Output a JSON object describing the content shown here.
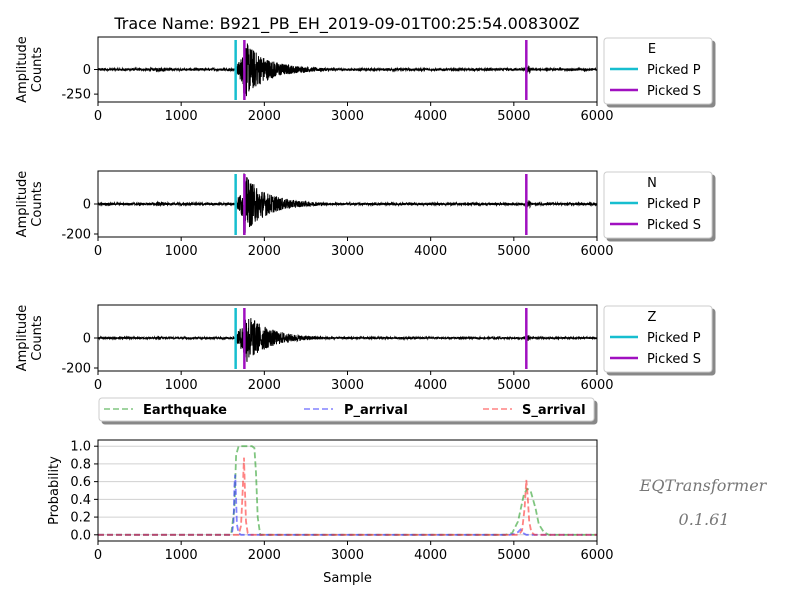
{
  "title": "Trace Name: B921_PB_EH_2019-09-01T00:25:54.008300Z",
  "brand": {
    "name": "EQTransformer",
    "version": "0.1.61"
  },
  "colors": {
    "picked_p": "#17becf",
    "picked_s": "#a010c0",
    "waveform": "#000000",
    "earthquake": "#2ca02c",
    "p_arrival": "#3030ff",
    "s_arrival": "#ff3030"
  },
  "chart_data": [
    {
      "type": "line",
      "name": "E",
      "xlabel": "",
      "ylabel": "Amplitude\nCounts",
      "xlim": [
        0,
        6000
      ],
      "ylim": [
        -330,
        330
      ],
      "yticks": [
        0,
        -250
      ],
      "xticks": [
        0,
        1000,
        2000,
        3000,
        4000,
        5000,
        6000
      ],
      "noise_amp": 12,
      "peak_amp": 300,
      "picked_p": 1655,
      "picked_s": 1760,
      "picked_s2": 5150,
      "legend": {
        "title": "E",
        "entries": [
          "Picked P",
          "Picked S"
        ]
      }
    },
    {
      "type": "line",
      "name": "N",
      "xlabel": "",
      "ylabel": "Amplitude\nCounts",
      "xlim": [
        0,
        6000
      ],
      "ylim": [
        -220,
        220
      ],
      "yticks": [
        0,
        -200
      ],
      "xticks": [
        0,
        1000,
        2000,
        3000,
        4000,
        5000,
        6000
      ],
      "noise_amp": 8,
      "peak_amp": 200,
      "picked_p": 1655,
      "picked_s": 1760,
      "picked_s2": 5150,
      "legend": {
        "title": "N",
        "entries": [
          "Picked P",
          "Picked S"
        ]
      }
    },
    {
      "type": "line",
      "name": "Z",
      "xlabel": "",
      "ylabel": "Amplitude\nCounts",
      "xlim": [
        0,
        6000
      ],
      "ylim": [
        -220,
        220
      ],
      "yticks": [
        0,
        -200
      ],
      "xticks": [
        0,
        1000,
        2000,
        3000,
        4000,
        5000,
        6000
      ],
      "noise_amp": 6,
      "peak_amp": 190,
      "picked_p": 1655,
      "picked_s": 1760,
      "picked_s2": 5150,
      "legend": {
        "title": "Z",
        "entries": [
          "Picked P",
          "Picked S"
        ]
      }
    },
    {
      "type": "line",
      "name": "probability",
      "xlabel": "Sample",
      "ylabel": "Probability",
      "xlim": [
        0,
        6000
      ],
      "ylim": [
        -0.07,
        1.07
      ],
      "yticks": [
        0.0,
        0.2,
        0.4,
        0.6,
        0.8,
        1.0
      ],
      "ytick_labels": [
        "0.0",
        "0.2",
        "0.4",
        "0.6",
        "0.8",
        "1.0"
      ],
      "xticks": [
        0,
        1000,
        2000,
        3000,
        4000,
        5000,
        6000
      ],
      "grid": "horizontal",
      "legend": {
        "placement": "top",
        "entries": [
          "Earthquake",
          "P_arrival",
          "S_arrival"
        ]
      },
      "series": [
        {
          "name": "Earthquake",
          "x": [
            0,
            1600,
            1640,
            1660,
            1690,
            1850,
            1880,
            1900,
            1920,
            1950,
            4900,
            4980,
            5050,
            5120,
            5160,
            5200,
            5260,
            5300,
            5360,
            5420,
            6000
          ],
          "y": [
            0,
            0,
            0.3,
            0.9,
            1.0,
            1.0,
            0.98,
            0.7,
            0.2,
            0,
            0,
            0.02,
            0.15,
            0.45,
            0.52,
            0.5,
            0.3,
            0.12,
            0.03,
            0,
            0
          ]
        },
        {
          "name": "P_arrival",
          "x": [
            0,
            1580,
            1615,
            1630,
            1640,
            1650,
            1660,
            1670,
            1690,
            1720,
            4950,
            5010,
            5050,
            5080,
            5110,
            5150,
            6000
          ],
          "y": [
            0,
            0,
            0.04,
            0.15,
            0.55,
            0.68,
            0.4,
            0.12,
            0.02,
            0,
            0,
            0.01,
            0.03,
            0.06,
            0.02,
            0,
            0
          ]
        },
        {
          "name": "S_arrival",
          "x": [
            0,
            1690,
            1720,
            1740,
            1755,
            1765,
            1780,
            1800,
            1830,
            5060,
            5100,
            5130,
            5150,
            5165,
            5185,
            5210,
            5250,
            6000
          ],
          "y": [
            0,
            0,
            0.1,
            0.5,
            0.87,
            0.55,
            0.15,
            0.02,
            0,
            0,
            0.05,
            0.3,
            0.62,
            0.45,
            0.15,
            0.03,
            0,
            0
          ]
        }
      ]
    }
  ]
}
